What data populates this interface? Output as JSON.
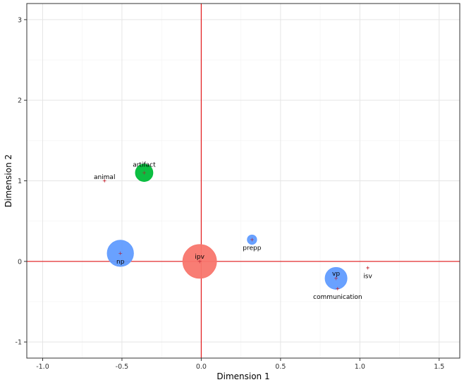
{
  "chart_data": {
    "type": "scatter",
    "title": "",
    "xlabel": "Dimension 1",
    "ylabel": "Dimension 2",
    "xlim": [
      -1.1,
      1.63
    ],
    "ylim": [
      -1.2,
      3.2
    ],
    "x_ticks": [
      -1.0,
      -0.5,
      0.0,
      0.5,
      1.0,
      1.5
    ],
    "x_tick_labels": [
      "-1.0",
      "-0.5",
      "0.0",
      "0.5",
      "1.0",
      "1.5"
    ],
    "y_ticks": [
      -1,
      0,
      1,
      2,
      3
    ],
    "y_tick_labels": [
      "-1",
      "0",
      "1",
      "2",
      "3"
    ],
    "grid": true,
    "reference_lines": {
      "x": 0,
      "y": 0,
      "color": "#e31a1c"
    },
    "colors": {
      "red": "#f8766d",
      "green": "#00ba38",
      "blue": "#619cff",
      "tick_mark": "#b2182b"
    },
    "points": [
      {
        "label": "ipv",
        "x": -0.01,
        "y": 0.0,
        "size": 1.0,
        "color": "red",
        "label_dx": 0.0,
        "label_dy": 0.06
      },
      {
        "label": "np",
        "x": -0.51,
        "y": 0.1,
        "size": 0.78,
        "color": "blue",
        "label_dx": 0.0,
        "label_dy": -0.1
      },
      {
        "label": "vp",
        "x": 0.85,
        "y": -0.21,
        "size": 0.65,
        "color": "blue",
        "label_dx": 0.0,
        "label_dy": 0.06
      },
      {
        "label": "communication",
        "x": 0.86,
        "y": -0.34,
        "size": 0.04,
        "color": "red",
        "label_dx": 0.0,
        "label_dy": -0.1
      },
      {
        "label": "artifact",
        "x": -0.36,
        "y": 1.1,
        "size": 0.52,
        "color": "green",
        "label_dx": 0.0,
        "label_dy": 0.1
      },
      {
        "label": "animal",
        "x": -0.61,
        "y": 1.0,
        "size": 0.04,
        "color": "red",
        "label_dx": 0.0,
        "label_dy": 0.05
      },
      {
        "label": "prepp",
        "x": 0.32,
        "y": 0.27,
        "size": 0.28,
        "color": "blue",
        "label_dx": 0.0,
        "label_dy": -0.1
      },
      {
        "label": "isv",
        "x": 1.05,
        "y": -0.08,
        "size": 0.04,
        "color": "red",
        "label_dx": 0.0,
        "label_dy": -0.1
      }
    ]
  }
}
